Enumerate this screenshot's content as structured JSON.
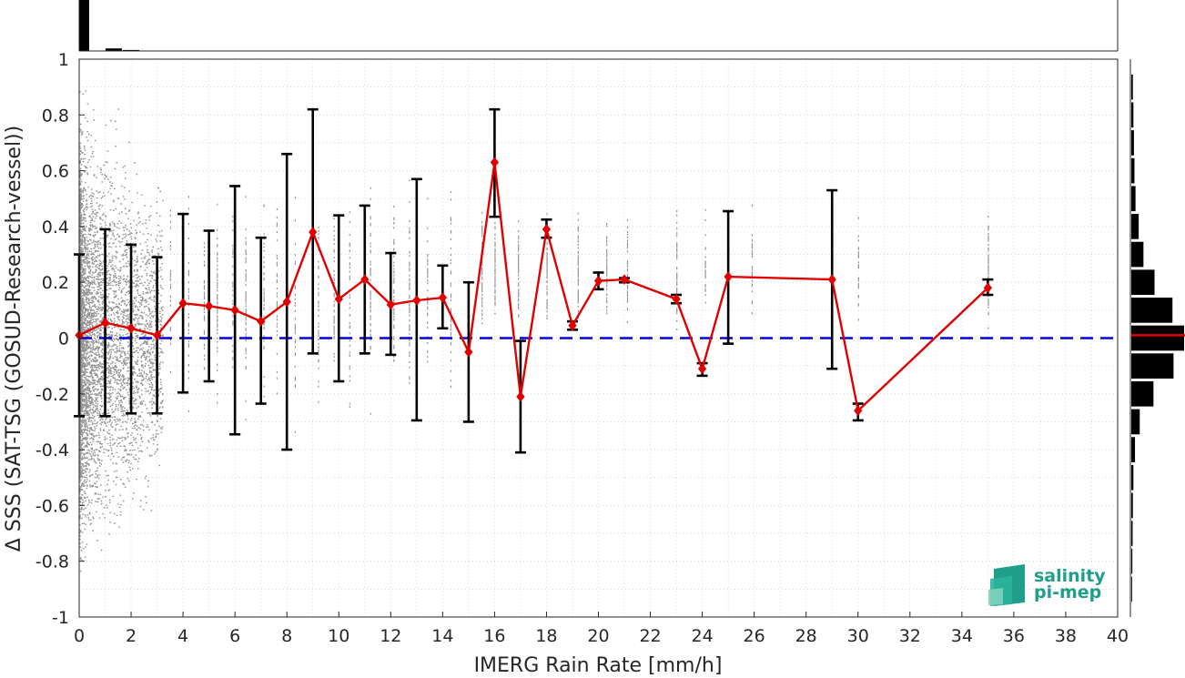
{
  "chart_data": {
    "type": "line",
    "xlabel": "IMERG Rain Rate [mm/h]",
    "ylabel": "Δ SSS (SAT-TSG (GOSUD-Research-vessel))",
    "xlim": [
      0,
      40
    ],
    "ylim": [
      -1,
      1
    ],
    "x_ticks": [
      0,
      2,
      4,
      6,
      8,
      10,
      12,
      14,
      16,
      18,
      20,
      22,
      24,
      26,
      28,
      30,
      32,
      34,
      36,
      38,
      40
    ],
    "y_ticks": [
      -1,
      -0.8,
      -0.6,
      -0.4,
      -0.2,
      0,
      0.2,
      0.4,
      0.6,
      0.8,
      1
    ],
    "grid": true,
    "reference_line": {
      "y": 0,
      "color": "#0000e0",
      "style": "dashed"
    },
    "series": [
      {
        "color": "#e00000",
        "marker": "diamond",
        "x": [
          0,
          1,
          2,
          3,
          4,
          5,
          6,
          7,
          8,
          9,
          10,
          11,
          12,
          13,
          14,
          15,
          16,
          17,
          18,
          19,
          20,
          21,
          23,
          24,
          25,
          29,
          30,
          35
        ],
        "y": [
          0.01,
          0.055,
          0.035,
          0.01,
          0.125,
          0.115,
          0.1,
          0.06,
          0.13,
          0.38,
          0.14,
          0.21,
          0.12,
          0.135,
          0.145,
          -0.05,
          0.63,
          -0.21,
          0.39,
          0.045,
          0.205,
          0.21,
          0.14,
          -0.11,
          0.22,
          0.21,
          -0.26,
          0.18
        ],
        "err_low": [
          -0.28,
          -0.28,
          -0.27,
          -0.27,
          -0.195,
          -0.155,
          -0.345,
          -0.235,
          -0.4,
          -0.055,
          -0.155,
          -0.055,
          -0.06,
          -0.295,
          0.035,
          -0.3,
          0.435,
          -0.41,
          0.36,
          0.03,
          0.175,
          0.2,
          0.125,
          -0.135,
          -0.02,
          -0.11,
          -0.295,
          0.155
        ],
        "err_high": [
          0.3,
          0.39,
          0.335,
          0.29,
          0.445,
          0.385,
          0.545,
          0.36,
          0.66,
          0.82,
          0.44,
          0.475,
          0.305,
          0.57,
          0.26,
          0.2,
          0.82,
          -0.01,
          0.425,
          0.06,
          0.235,
          0.215,
          0.155,
          -0.09,
          0.455,
          0.53,
          -0.235,
          0.21
        ]
      }
    ],
    "scatter_color": "#808080",
    "top_histogram": {
      "bins_x": [
        0.33,
        1.33,
        2.0
      ],
      "relative_height": [
        1.0,
        0.05,
        0.02
      ]
    },
    "right_histogram": {
      "bins_y": [
        0.9,
        0.8,
        0.7,
        0.6,
        0.5,
        0.4,
        0.3,
        0.2,
        0.1,
        0.0,
        -0.1,
        -0.2,
        -0.3,
        -0.4,
        -0.5,
        -0.6,
        -0.7,
        -0.8,
        -0.9
      ],
      "relative_width": [
        0.03,
        0.04,
        0.05,
        0.06,
        0.08,
        0.14,
        0.23,
        0.44,
        0.78,
        1.0,
        0.8,
        0.42,
        0.16,
        0.07,
        0.04,
        0.03,
        0.025,
        0.02,
        0.015
      ],
      "mean_line_y": 0.01,
      "mean_line_color": "#e00000"
    }
  },
  "logo": {
    "line1": "salinity",
    "line2": "pi-mep"
  }
}
